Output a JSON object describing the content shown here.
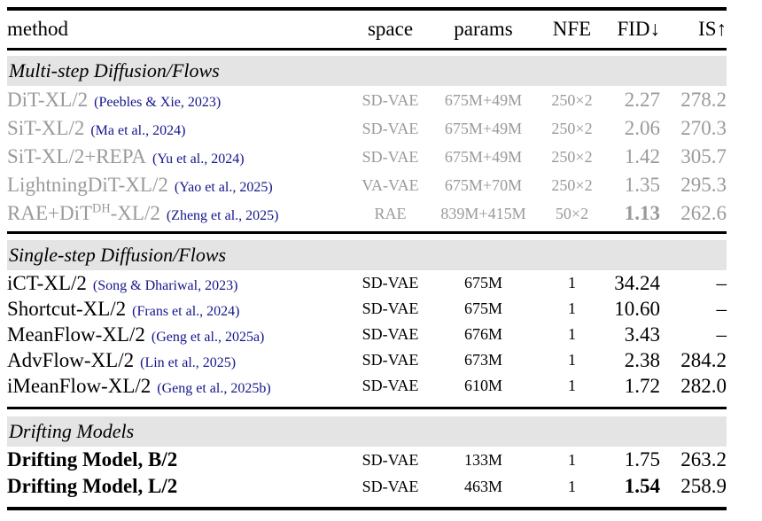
{
  "colors": {
    "page_bg": "#ffffff",
    "text": "#000000",
    "muted_text": "#9a9a9a",
    "citation": "#15158c",
    "band_bg": "#e4e4e4",
    "rule": "#000000"
  },
  "table": {
    "columns": [
      "method",
      "space",
      "params",
      "NFE",
      "FID↓",
      "IS↑"
    ],
    "sections": [
      {
        "title": "Multi-step Diffusion/Flows",
        "muted": true,
        "rows": [
          {
            "method": "DiT-XL/2",
            "citation": "(Peebles & Xie, 2023)",
            "space": "SD-VAE",
            "params": "675M+49M",
            "nfe": "250×2",
            "fid": "2.27",
            "is": "278.2"
          },
          {
            "method": "SiT-XL/2",
            "citation": "(Ma et al., 2024)",
            "space": "SD-VAE",
            "params": "675M+49M",
            "nfe": "250×2",
            "fid": "2.06",
            "is": "270.3"
          },
          {
            "method": "SiT-XL/2+REPA",
            "citation": "(Yu et al., 2024)",
            "space": "SD-VAE",
            "params": "675M+49M",
            "nfe": "250×2",
            "fid": "1.42",
            "is": "305.7"
          },
          {
            "method": "LightningDiT-XL/2",
            "citation": "(Yao et al., 2025)",
            "space": "VA-VAE",
            "params": "675M+70M",
            "nfe": "250×2",
            "fid": "1.35",
            "is": "295.3"
          },
          {
            "method": "RAE+DiT^DH-XL/2",
            "method_parts": [
              {
                "t": "RAE+DiT"
              },
              {
                "t": "DH",
                "sup": true
              },
              {
                "t": "-XL/2"
              }
            ],
            "citation": "(Zheng et al., 2025)",
            "space": "RAE",
            "params": "839M+415M",
            "nfe": "50×2",
            "fid": "1.13",
            "fid_bold": true,
            "is": "262.6"
          }
        ]
      },
      {
        "title": "Single-step Diffusion/Flows",
        "muted": false,
        "rows": [
          {
            "method": "iCT-XL/2",
            "citation": "(Song & Dhariwal, 2023)",
            "space": "SD-VAE",
            "params": "675M",
            "nfe": "1",
            "fid": "34.24",
            "is": "–"
          },
          {
            "method": "Shortcut-XL/2",
            "citation": "(Frans et al., 2024)",
            "space": "SD-VAE",
            "params": "675M",
            "nfe": "1",
            "fid": "10.60",
            "is": "–"
          },
          {
            "method": "MeanFlow-XL/2",
            "citation": "(Geng et al., 2025a)",
            "space": "SD-VAE",
            "params": "676M",
            "nfe": "1",
            "fid": "3.43",
            "is": "–"
          },
          {
            "method": "AdvFlow-XL/2",
            "citation": "(Lin et al., 2025)",
            "space": "SD-VAE",
            "params": "673M",
            "nfe": "1",
            "fid": "2.38",
            "is": "284.2"
          },
          {
            "method": "iMeanFlow-XL/2",
            "citation": "(Geng et al., 2025b)",
            "space": "SD-VAE",
            "params": "610M",
            "nfe": "1",
            "fid": "1.72",
            "is": "282.0"
          }
        ]
      },
      {
        "title": "Drifting Models",
        "muted": false,
        "rows": [
          {
            "method": "Drifting Model, B/2",
            "bold": true,
            "space": "SD-VAE",
            "params": "133M",
            "nfe": "1",
            "fid": "1.75",
            "is": "263.2"
          },
          {
            "method": "Drifting Model, L/2",
            "bold": true,
            "space": "SD-VAE",
            "params": "463M",
            "nfe": "1",
            "fid": "1.54",
            "fid_bold": true,
            "is": "258.9"
          }
        ]
      }
    ]
  }
}
